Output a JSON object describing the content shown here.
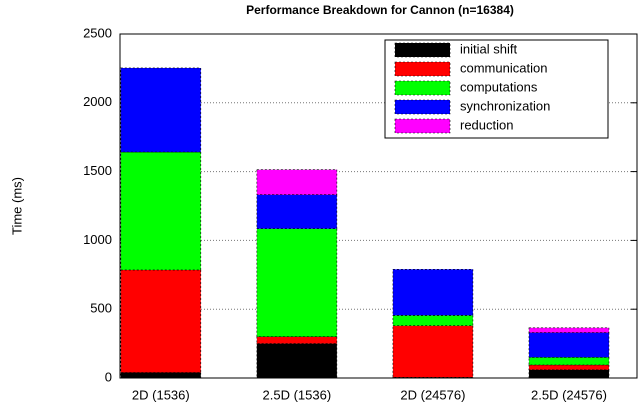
{
  "chart_data": {
    "type": "stacked_bar",
    "title": "Performance Breakdown for Cannon (n=16384)",
    "y_label": "Time (ms)",
    "categories": [
      "2D (1536)",
      "2.5D (1536)",
      "2D (24576)",
      "2.5D (24576)"
    ],
    "series": [
      {
        "name": "initial shift",
        "color": "#000000",
        "values": [
          40,
          250,
          5,
          60
        ]
      },
      {
        "name": "communication",
        "color": "#ff0000",
        "values": [
          745,
          50,
          375,
          35
        ]
      },
      {
        "name": "computations",
        "color": "#00ff00",
        "values": [
          857,
          785,
          75,
          55
        ]
      },
      {
        "name": "synchronization",
        "color": "#0000ff",
        "values": [
          611,
          247,
          335,
          180
        ]
      },
      {
        "name": "reduction",
        "color": "#ff00ff",
        "values": [
          0,
          182,
          0,
          35
        ]
      }
    ],
    "ylim": [
      0,
      2500
    ],
    "yticks": [
      0,
      500,
      1000,
      1500,
      2000,
      2500
    ],
    "grid": true,
    "legend": "upper right"
  }
}
